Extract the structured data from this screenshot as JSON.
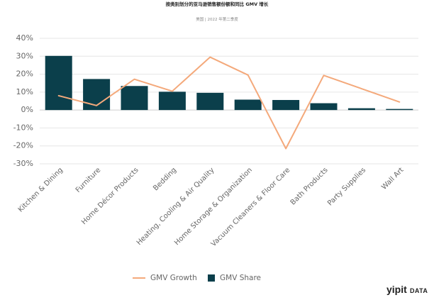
{
  "chart_data": {
    "type": "bar",
    "title": "按类别划分的亚马逊销售额份额和同比 GMV 增长",
    "subtitle": "美国 | 2022 年第二季度",
    "categories": [
      "Kitchen & Dining",
      "Furniture",
      "Home Décor Products",
      "Bedding",
      "Heating, Cooling & Air Quality",
      "Home Storage & Organization",
      "Vacuum Cleaners & Floor Care",
      "Bath Products",
      "Party Supplies",
      "Wall Art"
    ],
    "series": [
      {
        "name": "GMV Share",
        "type": "bar",
        "values": [
          30.2,
          17.3,
          13.4,
          10.2,
          9.6,
          5.8,
          5.6,
          3.8,
          1.0,
          0.6
        ]
      },
      {
        "name": "GMV Growth",
        "type": "line",
        "values": [
          8,
          2.5,
          17.2,
          10.5,
          29.5,
          19.5,
          -21.5,
          19.3,
          null,
          4.5
        ]
      }
    ],
    "ylim": [
      -30,
      40
    ],
    "yticks": [
      40,
      30,
      20,
      10,
      0,
      -10,
      -20,
      -30
    ],
    "ytick_labels": [
      "40%",
      "30%",
      "20%",
      "10%",
      "0%",
      "-10%",
      "-20%",
      "-30%"
    ],
    "grid": true,
    "legend_position": "bottom"
  },
  "colors": {
    "bar": "#0b3f4b",
    "line": "#f4a97b",
    "grid": "#e6e6e6",
    "text": "#666666"
  },
  "brand": {
    "main": "yipit",
    "sub": "DATA"
  }
}
